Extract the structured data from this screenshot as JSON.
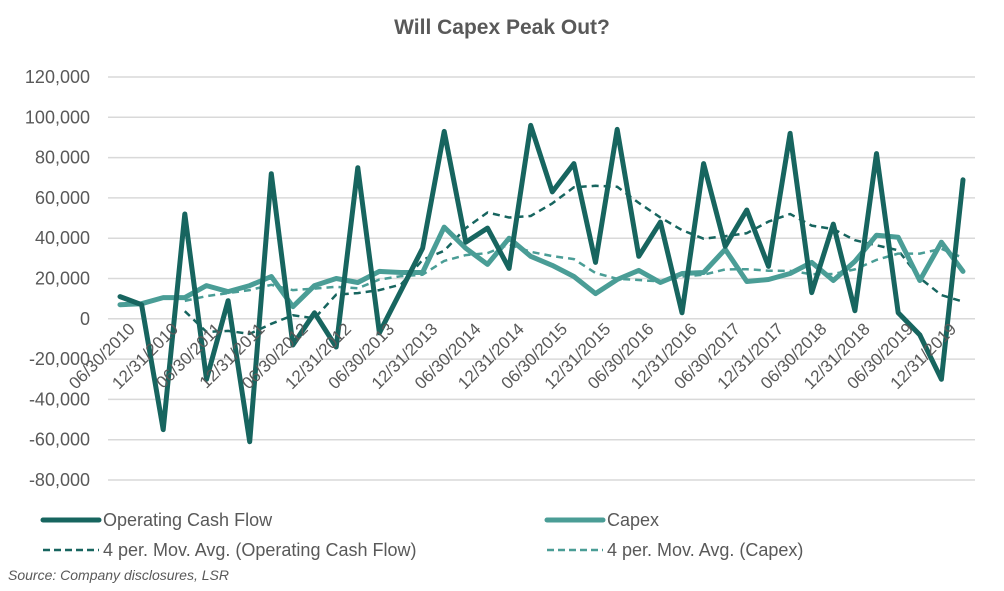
{
  "chart_data": {
    "type": "line",
    "title": "Will Capex Peak Out?",
    "xlabel": "",
    "ylabel": "",
    "ylim": [
      -80000,
      120000
    ],
    "yticks": [
      120000,
      100000,
      80000,
      60000,
      40000,
      20000,
      0,
      -20000,
      -40000,
      -60000,
      -80000
    ],
    "ytick_labels": [
      "120,000",
      "100,000",
      "80,000",
      "60,000",
      "40,000",
      "20,000",
      "0",
      "-20,000",
      "-40,000",
      "-60,000",
      "-80,000"
    ],
    "grid": true,
    "legend_position": "bottom",
    "x_tick_labels": [
      "06/30/2010",
      "12/31/2010",
      "06/30/2011",
      "12/31/2011",
      "06/30/2012",
      "12/31/2012",
      "06/30/2013",
      "12/31/2013",
      "06/30/2014",
      "12/31/2014",
      "06/30/2015",
      "12/31/2015",
      "06/30/2016",
      "12/31/2016",
      "06/30/2017",
      "12/31/2017",
      "06/30/2018",
      "12/31/2018",
      "06/30/2019",
      "12/31/2019"
    ],
    "n_points": 40,
    "series": [
      {
        "name": "Operating Cash Flow",
        "style": "solid",
        "color": "#17655F",
        "values": [
          11000,
          7000,
          -55000,
          52000,
          -30000,
          9000,
          -61000,
          72000,
          -13000,
          3000,
          -14000,
          75000,
          -7000,
          14000,
          35000,
          93000,
          38000,
          45000,
          25000,
          96000,
          63000,
          77000,
          28000,
          94000,
          31000,
          48000,
          3000,
          77000,
          36000,
          54000,
          26000,
          92000,
          13000,
          47000,
          4000,
          82000,
          3000,
          -8000,
          -30000,
          69000
        ]
      },
      {
        "name": "Capex",
        "style": "solid",
        "color": "#4A9D96",
        "values": [
          7000,
          7500,
          10500,
          10500,
          16500,
          13500,
          16500,
          21000,
          6000,
          16500,
          20000,
          18000,
          23500,
          23000,
          23000,
          45500,
          35000,
          27000,
          40000,
          31000,
          26500,
          21000,
          12500,
          19500,
          24000,
          18000,
          22500,
          23000,
          34500,
          18500,
          19500,
          22500,
          28000,
          19000,
          28500,
          41500,
          40500,
          19000,
          38000,
          23500
        ]
      },
      {
        "name": "4 per. Mov. Avg. (Operating Cash Flow)",
        "style": "dashed",
        "color": "#17655F",
        "moving_average_of": "Operating Cash Flow",
        "period": 4
      },
      {
        "name": "4 per. Mov. Avg. (Capex)",
        "style": "dashed",
        "color": "#4A9D96",
        "moving_average_of": "Capex",
        "period": 4
      }
    ]
  },
  "legend": [
    {
      "label": "Operating Cash Flow",
      "style": "solid",
      "color": "#17655F"
    },
    {
      "label": "Capex",
      "style": "solid",
      "color": "#4A9D96"
    },
    {
      "label": "4 per. Mov. Avg. (Operating Cash Flow)",
      "style": "dashed",
      "color": "#17655F"
    },
    {
      "label": "4 per. Mov. Avg. (Capex)",
      "style": "dashed",
      "color": "#4A9D96"
    }
  ],
  "source": "Source: Company disclosures, LSR",
  "colors": {
    "text": "#595959",
    "grid": "#D9D9D9"
  }
}
